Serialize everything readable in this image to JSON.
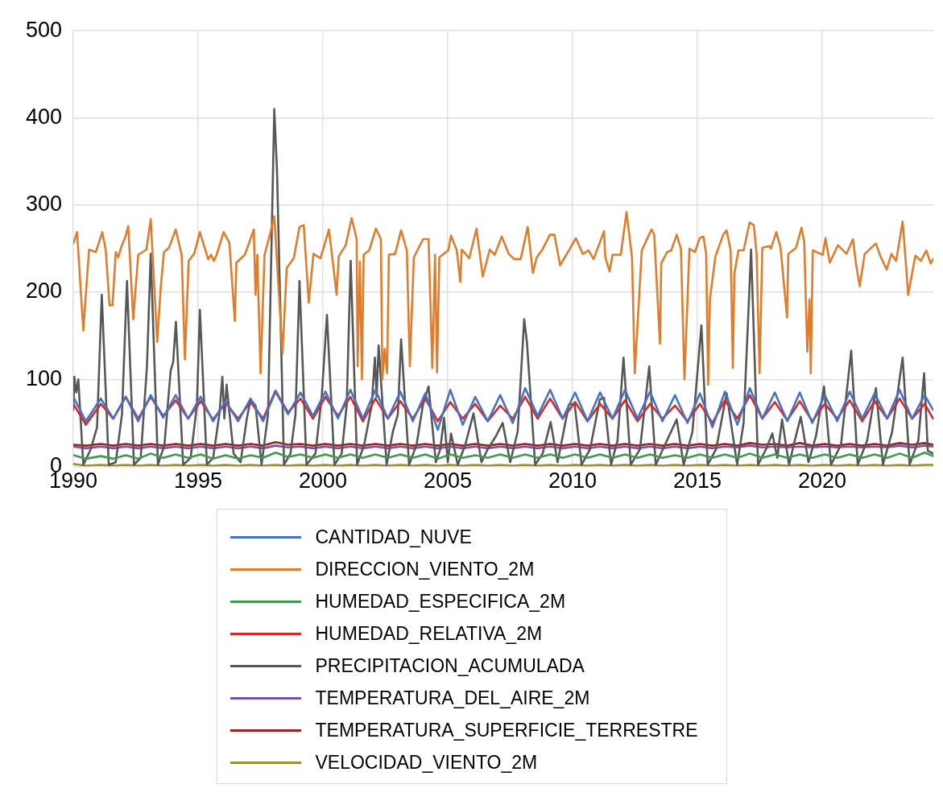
{
  "chart_data": {
    "type": "line",
    "xlim": [
      1990,
      2024.45
    ],
    "xticks": [
      1990,
      1995,
      2000,
      2005,
      2010,
      2015,
      2020
    ],
    "ylim": [
      0,
      500
    ],
    "yticks": [
      0,
      100,
      200,
      300,
      400,
      500
    ],
    "grid": true,
    "legend": "bottom",
    "marker": "none",
    "line_style": "solid",
    "x": [
      1990.0,
      1990.5,
      1991.1,
      1991.6,
      1992.1,
      1992.6,
      1993.1,
      1993.6,
      1994.1,
      1994.6,
      1995.1,
      1995.6,
      1996.1,
      1996.6,
      1997.1,
      1997.6,
      1998.1,
      1998.6,
      1999.1,
      1999.6,
      2000.1,
      2000.6,
      2001.1,
      2001.6,
      2002.1,
      2002.6,
      2003.1,
      2003.6,
      2004.1,
      2004.6,
      2005.1,
      2005.6,
      2006.1,
      2006.6,
      2007.1,
      2007.6,
      2008.1,
      2008.6,
      2009.1,
      2009.6,
      2010.1,
      2010.6,
      2011.1,
      2011.6,
      2012.1,
      2012.6,
      2013.1,
      2013.6,
      2014.1,
      2014.6,
      2015.1,
      2015.6,
      2016.1,
      2016.6,
      2017.1,
      2017.6,
      2018.1,
      2018.6,
      2019.1,
      2019.6,
      2020.1,
      2020.6,
      2021.1,
      2021.6,
      2022.1,
      2022.6,
      2023.1,
      2023.6,
      2024.1,
      2024.44
    ],
    "series": [
      {
        "name": "CANTIDAD_NUVE",
        "color": "#4472c4",
        "values": [
          80,
          52,
          78,
          55,
          80,
          52,
          82,
          56,
          82,
          55,
          80,
          52,
          75,
          52,
          78,
          52,
          86,
          60,
          85,
          58,
          86,
          55,
          88,
          55,
          88,
          55,
          86,
          52,
          84,
          42,
          88,
          48,
          80,
          52,
          82,
          50,
          90,
          58,
          88,
          55,
          85,
          52,
          85,
          55,
          88,
          55,
          86,
          52,
          82,
          50,
          84,
          45,
          86,
          48,
          90,
          55,
          85,
          52,
          85,
          50,
          82,
          52,
          86,
          55,
          84,
          55,
          88,
          55,
          82,
          65
        ]
      },
      {
        "name": "DIRECCION_VIENTO_2M",
        "color": "#e07d2c",
        "x": [
          1990.0,
          1990.15,
          1990.4,
          1990.63,
          1990.9,
          1991.16,
          1991.3,
          1991.45,
          1991.57,
          1991.7,
          1991.8,
          1991.92,
          1992.09,
          1992.2,
          1992.4,
          1992.6,
          1992.93,
          1993.1,
          1993.36,
          1993.5,
          1993.63,
          1993.83,
          1994.1,
          1994.34,
          1994.47,
          1994.62,
          1994.84,
          1995.07,
          1995.4,
          1995.52,
          1995.63,
          1995.74,
          1996.02,
          1996.25,
          1996.47,
          1996.53,
          1996.87,
          1997.23,
          1997.3,
          1997.37,
          1997.5,
          1997.66,
          1997.88,
          1998.05,
          1998.38,
          1998.55,
          1998.83,
          1999.06,
          1999.23,
          1999.43,
          1999.62,
          1999.9,
          2000.24,
          2000.55,
          2000.63,
          2000.91,
          2001.15,
          2001.35,
          2001.39,
          2001.48,
          2001.56,
          2001.63,
          2001.85,
          2002.12,
          2002.32,
          2002.38,
          2002.47,
          2002.57,
          2002.64,
          2002.89,
          2003.13,
          2003.36,
          2003.48,
          2003.64,
          2004.01,
          2004.23,
          2004.38,
          2004.49,
          2004.57,
          2004.66,
          2005.02,
          2005.13,
          2005.36,
          2005.5,
          2005.56,
          2005.86,
          2006.15,
          2006.4,
          2006.68,
          2006.88,
          2007.16,
          2007.44,
          2007.66,
          2007.92,
          2008.2,
          2008.41,
          2008.56,
          2008.79,
          2009.09,
          2009.27,
          2009.5,
          2009.85,
          2010.13,
          2010.41,
          2010.64,
          2010.84,
          2011.26,
          2011.31,
          2011.48,
          2011.6,
          2011.93,
          2012.16,
          2012.38,
          2012.49,
          2012.77,
          2013.16,
          2013.27,
          2013.5,
          2013.55,
          2013.78,
          2013.95,
          2014.17,
          2014.34,
          2014.48,
          2014.68,
          2014.9,
          2015.09,
          2015.24,
          2015.35,
          2015.43,
          2015.5,
          2015.72,
          2016.03,
          2016.17,
          2016.33,
          2016.42,
          2016.48,
          2016.64,
          2016.85,
          2017.09,
          2017.26,
          2017.37,
          2017.49,
          2017.6,
          2017.88,
          2017.94,
          2018.16,
          2018.33,
          2018.59,
          2018.64,
          2018.95,
          2019.17,
          2019.28,
          2019.4,
          2019.49,
          2019.54,
          2019.62,
          2020.02,
          2020.13,
          2020.3,
          2020.63,
          2020.97,
          2021.23,
          2021.36,
          2021.5,
          2021.7,
          2022.15,
          2022.32,
          2022.58,
          2022.77,
          2022.96,
          2023.22,
          2023.33,
          2023.44,
          2023.73,
          2023.95,
          2024.17,
          2024.34,
          2024.44
        ],
        "values": [
          256,
          269,
          156,
          249,
          246,
          269,
          248,
          185,
          185,
          246,
          240,
          252,
          264,
          276,
          169,
          243,
          249,
          284,
          143,
          205,
          246,
          251,
          272,
          243,
          123,
          236,
          244,
          269,
          238,
          243,
          236,
          243,
          269,
          257,
          167,
          234,
          243,
          272,
          197,
          243,
          107,
          243,
          267,
          287,
          130,
          228,
          239,
          275,
          277,
          188,
          244,
          239,
          272,
          197,
          241,
          254,
          285,
          261,
          115,
          235,
          100,
          243,
          248,
          273,
          261,
          100,
          135,
          107,
          243,
          244,
          271,
          248,
          115,
          240,
          261,
          261,
          113,
          243,
          108,
          240,
          248,
          265,
          248,
          212,
          249,
          239,
          273,
          218,
          249,
          243,
          264,
          244,
          238,
          238,
          275,
          222,
          240,
          249,
          266,
          266,
          231,
          248,
          262,
          244,
          248,
          238,
          270,
          240,
          224,
          243,
          243,
          292,
          240,
          107,
          248,
          272,
          266,
          141,
          233,
          246,
          248,
          266,
          250,
          100,
          250,
          246,
          262,
          264,
          244,
          94,
          192,
          241,
          266,
          271,
          248,
          113,
          221,
          248,
          248,
          280,
          277,
          244,
          107,
          251,
          253,
          250,
          269,
          251,
          171,
          244,
          251,
          274,
          257,
          132,
          192,
          107,
          248,
          243,
          262,
          234,
          254,
          244,
          261,
          231,
          207,
          244,
          256,
          242,
          226,
          244,
          236,
          281,
          241,
          197,
          242,
          236,
          248,
          233,
          238
        ]
      },
      {
        "name": "HUMEDAD_ESPECIFICA_2M",
        "color": "#3d9b4f",
        "values": [
          13,
          9,
          12,
          9,
          13,
          9,
          15,
          10,
          14,
          10,
          14,
          9,
          13,
          9,
          13,
          10,
          16,
          11,
          14,
          10,
          14,
          10,
          14,
          10,
          14,
          10,
          14,
          10,
          14,
          9,
          14,
          10,
          13,
          10,
          14,
          10,
          14,
          10,
          14,
          10,
          14,
          10,
          14,
          10,
          14,
          10,
          14,
          10,
          13,
          10,
          14,
          10,
          14,
          10,
          15,
          10,
          14,
          10,
          14,
          10,
          14,
          10,
          14,
          10,
          14,
          10,
          15,
          10,
          16,
          12
        ]
      },
      {
        "name": "HUMEDAD_RELATIVA_2M",
        "color": "#d62a2a",
        "values": [
          72,
          48,
          72,
          55,
          80,
          55,
          80,
          58,
          76,
          55,
          75,
          54,
          73,
          55,
          74,
          55,
          87,
          62,
          78,
          55,
          80,
          58,
          80,
          52,
          78,
          55,
          75,
          55,
          78,
          52,
          74,
          55,
          72,
          52,
          70,
          55,
          80,
          55,
          78,
          55,
          74,
          52,
          72,
          55,
          76,
          52,
          72,
          55,
          70,
          52,
          72,
          50,
          76,
          55,
          82,
          55,
          74,
          53,
          75,
          52,
          72,
          55,
          76,
          52,
          75,
          55,
          78,
          55,
          72,
          55
        ]
      },
      {
        "name": "PRECIPITACION_ACUMULADA",
        "color": "#575757",
        "x": [
          1990.0,
          1990.04,
          1990.12,
          1990.2,
          1990.4,
          1990.7,
          1990.95,
          1991.14,
          1991.42,
          1991.7,
          1991.95,
          1992.15,
          1992.43,
          1992.7,
          1992.95,
          1993.1,
          1993.39,
          1993.65,
          1993.9,
          1994.0,
          1994.11,
          1994.4,
          1994.7,
          1994.95,
          1995.07,
          1995.35,
          1995.6,
          1995.85,
          1995.97,
          1996.05,
          1996.14,
          1996.42,
          1996.7,
          1996.95,
          1997.1,
          1997.3,
          1997.54,
          1997.8,
          1998.05,
          1998.16,
          1998.44,
          1998.7,
          1998.9,
          1999.06,
          1999.34,
          1999.7,
          1999.95,
          2000.16,
          2000.46,
          2000.75,
          2000.95,
          2001.11,
          2001.37,
          2001.65,
          2001.95,
          2002.08,
          2002.15,
          2002.23,
          2002.55,
          2002.8,
          2003.0,
          2003.13,
          2003.45,
          2003.75,
          2004.0,
          2004.23,
          2004.52,
          2004.7,
          2004.85,
          2005.0,
          2005.13,
          2005.4,
          2005.7,
          2006.03,
          2006.35,
          2006.6,
          2006.93,
          2007.2,
          2007.5,
          2007.8,
          2008.06,
          2008.17,
          2008.5,
          2008.8,
          2009.12,
          2009.4,
          2009.85,
          2010.08,
          2010.36,
          2010.7,
          2011.09,
          2011.26,
          2011.54,
          2011.8,
          2012.04,
          2012.33,
          2012.7,
          2013.07,
          2013.33,
          2013.7,
          2014.17,
          2014.45,
          2014.8,
          2015.16,
          2015.41,
          2015.75,
          2016.17,
          2016.59,
          2016.85,
          2017.15,
          2017.43,
          2017.75,
          2018.0,
          2018.2,
          2018.39,
          2018.67,
          2018.9,
          2019.14,
          2019.45,
          2019.75,
          2020.07,
          2020.35,
          2020.75,
          2021.16,
          2021.42,
          2021.8,
          2022.15,
          2022.43,
          2022.8,
          2023.22,
          2023.5,
          2023.85,
          2024.08,
          2024.23,
          2024.44
        ],
        "values": [
          65,
          103,
          85,
          100,
          2,
          20,
          45,
          197,
          2,
          5,
          60,
          213,
          2,
          10,
          115,
          244,
          2,
          25,
          110,
          120,
          166,
          2,
          10,
          70,
          180,
          2,
          10,
          60,
          103,
          55,
          94,
          15,
          5,
          55,
          77,
          70,
          2,
          60,
          410,
          339,
          2,
          15,
          60,
          213,
          2,
          15,
          80,
          174,
          2,
          15,
          70,
          236,
          2,
          25,
          70,
          125,
          80,
          139,
          2,
          40,
          60,
          146,
          2,
          25,
          70,
          92,
          5,
          20,
          56,
          5,
          38,
          2,
          25,
          61,
          5,
          20,
          35,
          50,
          5,
          40,
          169,
          143,
          2,
          15,
          51,
          5,
          71,
          72,
          2,
          20,
          77,
          79,
          2,
          30,
          125,
          2,
          20,
          115,
          2,
          25,
          54,
          2,
          40,
          162,
          2,
          20,
          84,
          2,
          50,
          249,
          2,
          20,
          38,
          10,
          54,
          2,
          30,
          57,
          5,
          35,
          92,
          2,
          25,
          133,
          2,
          30,
          90,
          2,
          40,
          125,
          2,
          30,
          107,
          18,
          15
        ]
      },
      {
        "name": "TEMPERATURA_DEL_AIRE_2M",
        "color": "#7a53a6",
        "values": [
          23,
          21,
          23,
          21,
          23,
          21,
          23,
          21,
          23,
          21,
          23,
          21,
          23,
          21,
          23,
          21,
          24,
          22,
          23,
          21,
          23,
          21,
          23,
          21,
          23,
          21,
          23,
          21,
          23,
          21,
          23,
          21,
          23,
          21,
          23,
          21,
          23,
          21,
          23,
          21,
          23,
          21,
          23,
          21,
          23,
          21,
          23,
          21,
          23,
          21,
          23,
          21,
          23,
          22,
          24,
          22,
          23,
          22,
          23,
          22,
          23,
          22,
          23,
          22,
          23,
          22,
          24,
          22,
          24,
          23
        ]
      },
      {
        "name": "TEMPERATURA_SUPERFICIE_TERRESTRE",
        "color": "#9b2423",
        "values": [
          25,
          24,
          26,
          24,
          26,
          24,
          26,
          24,
          26,
          24,
          26,
          24,
          26,
          24,
          26,
          24,
          28,
          25,
          26,
          24,
          26,
          24,
          26,
          24,
          26,
          24,
          26,
          24,
          26,
          24,
          26,
          24,
          26,
          24,
          26,
          24,
          26,
          24,
          26,
          24,
          26,
          24,
          26,
          24,
          26,
          24,
          26,
          24,
          26,
          24,
          26,
          24,
          26,
          24,
          27,
          25,
          26,
          24,
          27,
          24,
          26,
          24,
          26,
          24,
          26,
          24,
          27,
          25,
          27,
          25
        ]
      },
      {
        "name": "VELOCIDAD_VIENTO_2M",
        "color": "#9a9033",
        "values": [
          3,
          1,
          2,
          1,
          2,
          1,
          2,
          1,
          2,
          1,
          2,
          1,
          2,
          1,
          2,
          1,
          2,
          1,
          2,
          1,
          2,
          1,
          2,
          1,
          2,
          1,
          2,
          1,
          2,
          1,
          2,
          1,
          2,
          1,
          2,
          1,
          2,
          1,
          2,
          1,
          2,
          1,
          2,
          1,
          2,
          1,
          2,
          1,
          2,
          1,
          2,
          1,
          2,
          1,
          2,
          1,
          2,
          1,
          2,
          1,
          2,
          1,
          2,
          1,
          2,
          1,
          2,
          1,
          2,
          2
        ]
      }
    ]
  }
}
